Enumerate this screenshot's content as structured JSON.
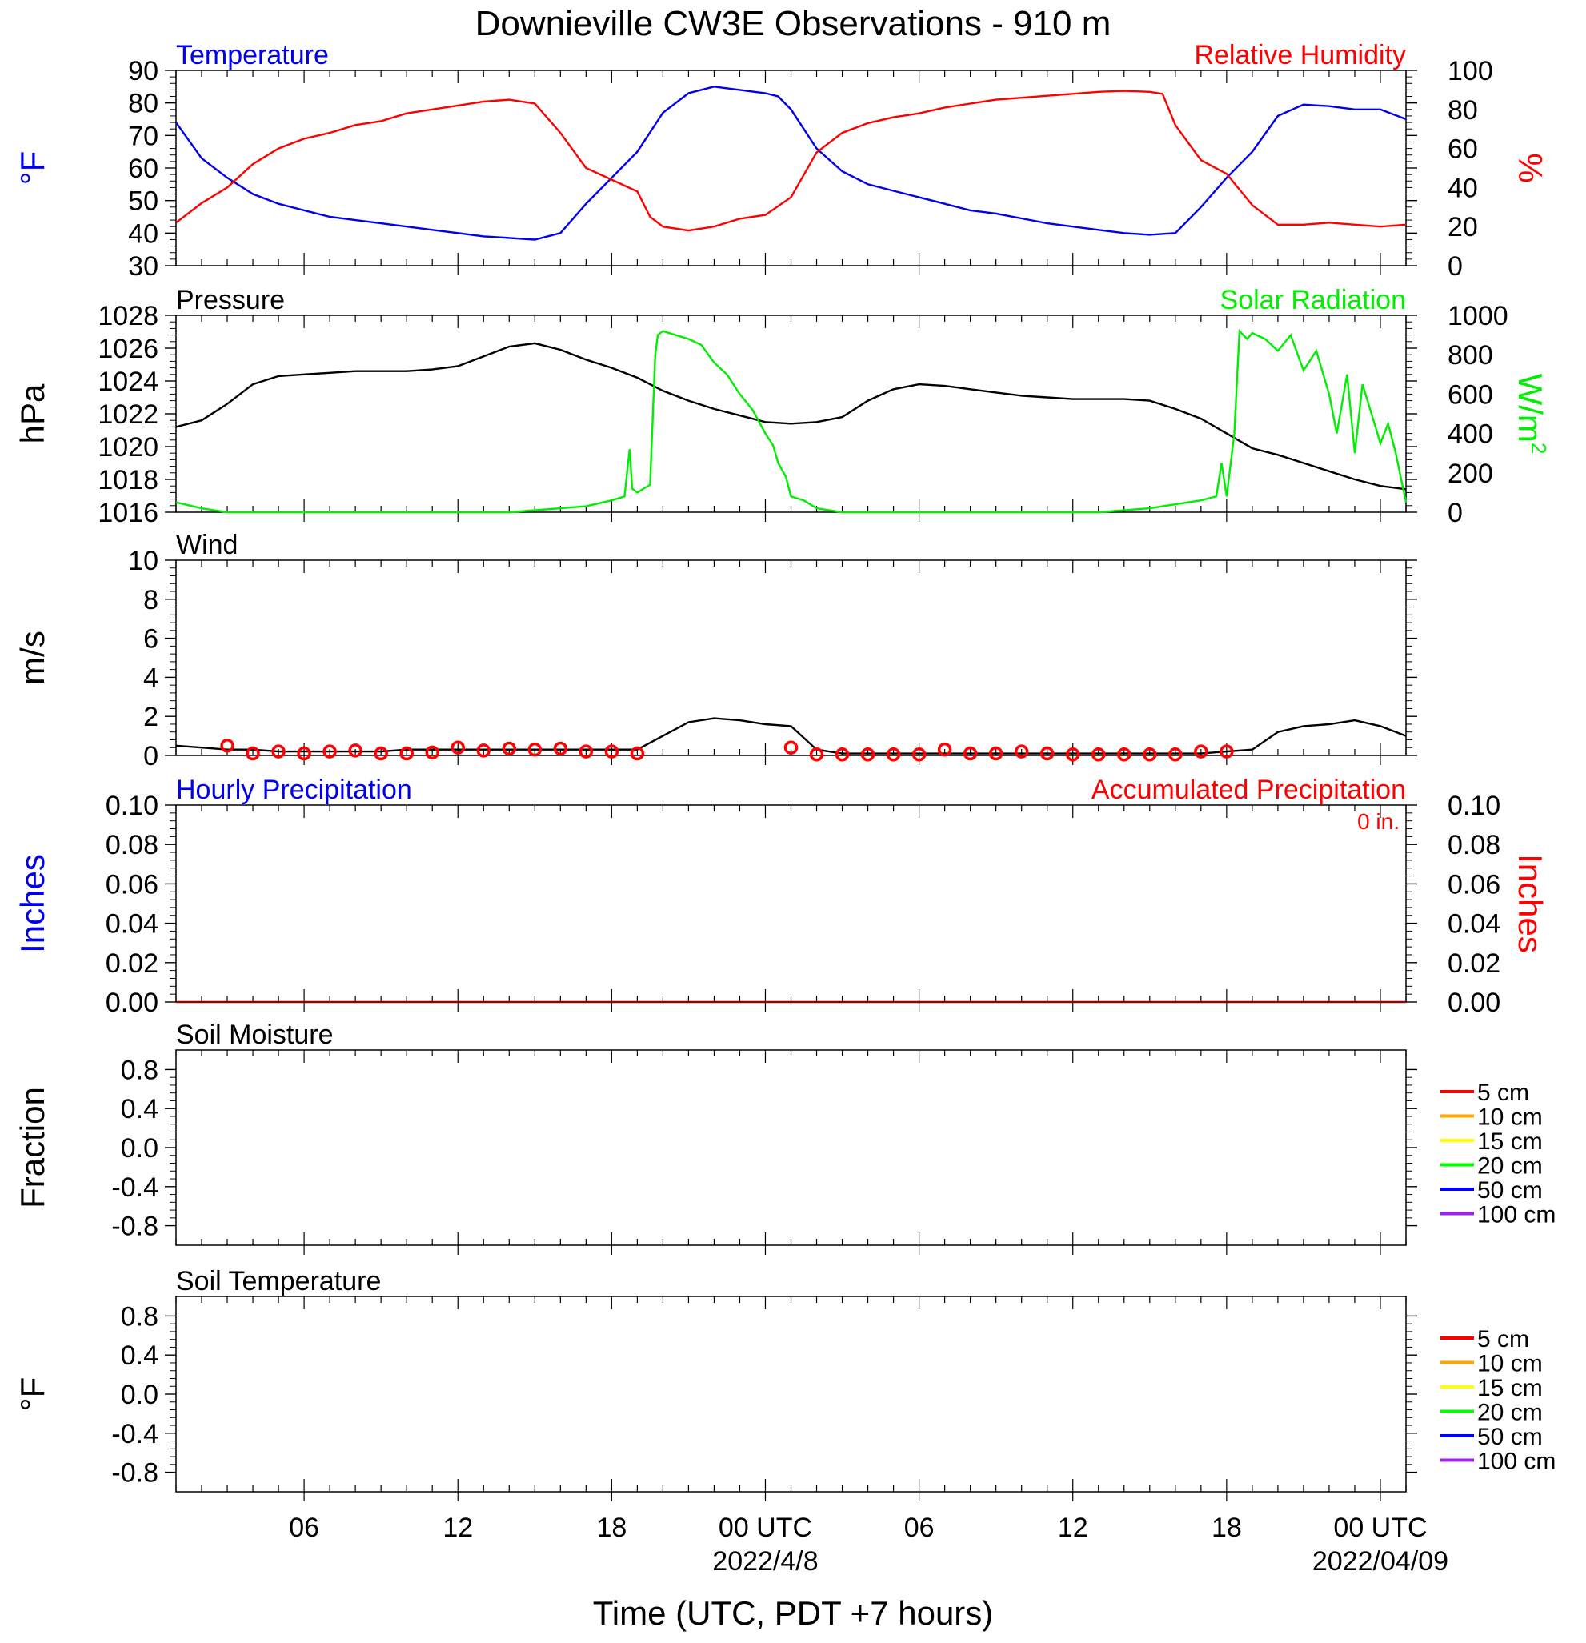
{
  "title": "Downieville CW3E Observations - 910 m",
  "xlabel": "Time (UTC, PDT +7 hours)",
  "x_axis": {
    "range_hours": [
      0,
      48
    ],
    "ticks": [
      {
        "hour": 5,
        "label": "06",
        "date": ""
      },
      {
        "hour": 11,
        "label": "12",
        "date": ""
      },
      {
        "hour": 17,
        "label": "18",
        "date": ""
      },
      {
        "hour": 23,
        "label": "00 UTC",
        "date": "2022/4/8"
      },
      {
        "hour": 29,
        "label": "06",
        "date": ""
      },
      {
        "hour": 35,
        "label": "12",
        "date": ""
      },
      {
        "hour": 41,
        "label": "18",
        "date": ""
      },
      {
        "hour": 47,
        "label": "00 UTC",
        "date": "2022/04/09"
      }
    ]
  },
  "colors": {
    "temperature": "#0000ee",
    "humidity": "#ff0000",
    "pressure": "#000000",
    "solar": "#00ee00",
    "wind": "#000000",
    "wind_marker": "#ff0000",
    "precip_left": "#0000ee",
    "precip_right": "#ff0000"
  },
  "chart_data": [
    {
      "type": "line",
      "id": "temperature-rh",
      "left_title": "Temperature",
      "right_title": "Relative Humidity",
      "ylabel_left": "°F",
      "ylabel_right": "%",
      "ylim_left": [
        30,
        90
      ],
      "yticks_left": [
        30,
        40,
        50,
        60,
        70,
        80,
        90
      ],
      "ylim_right": [
        0,
        100
      ],
      "yticks_right": [
        0,
        20,
        40,
        60,
        80,
        100
      ],
      "series": [
        {
          "name": "Temperature",
          "axis": "left",
          "x": [
            0,
            1,
            2,
            3,
            4,
            5,
            6,
            7,
            8,
            9,
            10,
            11,
            12,
            13,
            14,
            15,
            16,
            17,
            18,
            19,
            20,
            21,
            22,
            23,
            23.5,
            24,
            25,
            26,
            27,
            28,
            29,
            30,
            31,
            32,
            33,
            34,
            35,
            36,
            37,
            38,
            39,
            40,
            41,
            42,
            43,
            44,
            45,
            46,
            47,
            48
          ],
          "y": [
            74,
            63,
            57,
            52,
            49,
            47,
            45,
            44,
            43,
            42,
            41,
            40,
            39,
            38.5,
            38,
            40,
            49,
            57,
            65,
            77,
            83,
            85,
            84,
            83,
            82,
            78,
            66,
            59,
            55,
            53,
            51,
            49,
            47,
            46,
            44.5,
            43,
            42,
            41,
            40,
            39.5,
            40,
            48,
            57,
            65,
            76,
            79.5,
            79,
            78,
            78,
            75
          ]
        },
        {
          "name": "Relative Humidity",
          "axis": "right",
          "x": [
            0,
            1,
            2,
            3,
            4,
            5,
            6,
            7,
            8,
            9,
            10,
            11,
            12,
            13,
            14,
            15,
            16,
            17,
            18,
            18.5,
            19,
            20,
            21,
            22,
            23,
            24,
            25,
            26,
            27,
            28,
            29,
            30,
            31,
            32,
            33,
            34,
            35,
            36,
            37,
            38,
            38.5,
            39,
            40,
            41,
            42,
            43,
            44,
            45,
            46,
            47,
            48
          ],
          "y": [
            22,
            32,
            40,
            52,
            60,
            65,
            68,
            72,
            74,
            78,
            80,
            82,
            84,
            85,
            83,
            68,
            50,
            44,
            38,
            25,
            20,
            18,
            20,
            24,
            26,
            35,
            58,
            68,
            73,
            76,
            78,
            81,
            83,
            85,
            86,
            87,
            88,
            89,
            89.5,
            89,
            88,
            72,
            54,
            47,
            31,
            21,
            21,
            22,
            21,
            20,
            21
          ]
        }
      ]
    },
    {
      "type": "line",
      "id": "pressure-solar",
      "left_title": "Pressure",
      "right_title": "Solar Radiation",
      "ylabel_left": "hPa",
      "ylabel_right": "W/m",
      "ylabel_right_sup": "2",
      "ylim_left": [
        1016,
        1028
      ],
      "yticks_left": [
        1016,
        1018,
        1020,
        1022,
        1024,
        1026,
        1028
      ],
      "ylim_right": [
        0,
        1000
      ],
      "yticks_right": [
        0,
        200,
        400,
        600,
        800,
        1000
      ],
      "series": [
        {
          "name": "Pressure",
          "axis": "left",
          "x": [
            0,
            1,
            2,
            3,
            4,
            5,
            6,
            7,
            8,
            9,
            10,
            11,
            12,
            13,
            14,
            15,
            16,
            17,
            18,
            19,
            20,
            21,
            22,
            23,
            24,
            25,
            26,
            27,
            28,
            29,
            30,
            31,
            32,
            33,
            34,
            35,
            36,
            37,
            38,
            39,
            40,
            41,
            42,
            43,
            44,
            45,
            46,
            47,
            48
          ],
          "y": [
            1021.2,
            1021.6,
            1022.6,
            1023.8,
            1024.3,
            1024.4,
            1024.5,
            1024.6,
            1024.6,
            1024.6,
            1024.7,
            1024.9,
            1025.5,
            1026.1,
            1026.3,
            1025.9,
            1025.3,
            1024.8,
            1024.2,
            1023.4,
            1022.8,
            1022.3,
            1021.9,
            1021.5,
            1021.4,
            1021.5,
            1021.8,
            1022.8,
            1023.5,
            1023.8,
            1023.7,
            1023.5,
            1023.3,
            1023.1,
            1023.0,
            1022.9,
            1022.9,
            1022.9,
            1022.8,
            1022.3,
            1021.7,
            1020.8,
            1019.9,
            1019.5,
            1019.0,
            1018.5,
            1018.0,
            1017.6,
            1017.4
          ]
        },
        {
          "name": "Solar Radiation",
          "axis": "right",
          "x": [
            0,
            1,
            2,
            5,
            10,
            13,
            16,
            17,
            17.5,
            17.7,
            17.8,
            18,
            18.5,
            18.7,
            18.8,
            19,
            19.5,
            20,
            20.5,
            21,
            21.5,
            22,
            22.5,
            23,
            23.3,
            23.5,
            23.8,
            24,
            24.5,
            25,
            26,
            30,
            36,
            38,
            40,
            40.6,
            40.8,
            41,
            41.3,
            41.5,
            41.8,
            42,
            42.5,
            43,
            43.5,
            44,
            44.5,
            45,
            45.3,
            45.7,
            46,
            46.3,
            46.7,
            47,
            47.3,
            47.6,
            48
          ],
          "y": [
            50,
            20,
            0,
            0,
            0,
            0,
            30,
            60,
            80,
            320,
            120,
            100,
            140,
            800,
            900,
            920,
            900,
            880,
            850,
            760,
            700,
            600,
            520,
            400,
            340,
            250,
            180,
            80,
            60,
            20,
            0,
            0,
            0,
            20,
            60,
            80,
            250,
            80,
            400,
            920,
            880,
            910,
            880,
            820,
            900,
            720,
            820,
            600,
            400,
            700,
            300,
            650,
            480,
            350,
            450,
            300,
            50
          ]
        }
      ]
    },
    {
      "type": "line",
      "id": "wind",
      "left_title": "Wind",
      "ylabel_left": "m/s",
      "ylim_left": [
        0,
        10
      ],
      "yticks_left": [
        0,
        2,
        4,
        6,
        8,
        10
      ],
      "series": [
        {
          "name": "Wind speed",
          "axis": "left",
          "x": [
            0,
            1,
            2,
            3,
            4,
            5,
            6,
            7,
            8,
            9,
            10,
            11,
            12,
            13,
            14,
            15,
            16,
            17,
            18,
            19,
            20,
            21,
            22,
            23,
            24,
            25,
            26,
            27,
            28,
            29,
            30,
            31,
            32,
            33,
            34,
            35,
            36,
            37,
            38,
            39,
            40,
            41,
            42,
            43,
            44,
            45,
            46,
            47,
            48
          ],
          "y": [
            0.5,
            0.4,
            0.3,
            0.3,
            0.2,
            0.2,
            0.2,
            0.2,
            0.2,
            0.3,
            0.3,
            0.3,
            0.3,
            0.3,
            0.3,
            0.3,
            0.3,
            0.3,
            0.3,
            1.0,
            1.7,
            1.9,
            1.8,
            1.6,
            1.5,
            0.3,
            0.1,
            0.1,
            0.1,
            0.1,
            0.1,
            0.1,
            0.1,
            0.1,
            0.1,
            0.1,
            0.1,
            0.1,
            0.1,
            0.1,
            0.1,
            0.2,
            0.3,
            1.2,
            1.5,
            1.6,
            1.8,
            1.5,
            1.0
          ]
        },
        {
          "name": "Hourly wind markers",
          "axis": "left",
          "marker": "circle",
          "x": [
            2,
            3,
            4,
            5,
            6,
            7,
            8,
            9,
            10,
            11,
            12,
            13,
            14,
            15,
            16,
            17,
            18,
            24,
            25,
            26,
            27,
            28,
            29,
            30,
            31,
            32,
            33,
            34,
            35,
            36,
            37,
            38,
            39,
            40,
            41
          ],
          "y": [
            0.5,
            0.1,
            0.2,
            0.1,
            0.2,
            0.25,
            0.1,
            0.1,
            0.15,
            0.4,
            0.25,
            0.35,
            0.3,
            0.35,
            0.2,
            0.2,
            0.1,
            0.4,
            0.05,
            0.05,
            0.05,
            0.05,
            0.05,
            0.3,
            0.1,
            0.1,
            0.2,
            0.1,
            0.05,
            0.05,
            0.05,
            0.05,
            0.05,
            0.2,
            0.2
          ]
        }
      ]
    },
    {
      "type": "line",
      "id": "precipitation",
      "left_title": "Hourly Precipitation",
      "right_title": "Accumulated Precipitation",
      "annotation": "0 in.",
      "ylabel_left": "Inches",
      "ylabel_right": "Inches",
      "ylim_left": [
        0,
        0.1
      ],
      "yticks_left": [
        "0.00",
        "0.02",
        "0.04",
        "0.06",
        "0.08",
        "0.10"
      ],
      "ylim_right": [
        0,
        0.1
      ],
      "yticks_right": [
        "0.00",
        "0.02",
        "0.04",
        "0.06",
        "0.08",
        "0.10"
      ],
      "series": [
        {
          "name": "Accumulated Precipitation",
          "axis": "right",
          "x": [
            0,
            48
          ],
          "y": [
            0,
            0
          ]
        }
      ]
    },
    {
      "type": "line",
      "id": "soil-moisture",
      "left_title": "Soil Moisture",
      "ylabel_left": "Fraction",
      "ylim_left": [
        -1,
        1
      ],
      "yticks_left": [
        "-0.8",
        "-0.4",
        "0.0",
        "0.4",
        "0.8"
      ],
      "legend": [
        {
          "label": "5 cm",
          "color": "#ff0000"
        },
        {
          "label": "10 cm",
          "color": "#ffa500"
        },
        {
          "label": "15 cm",
          "color": "#ffff00"
        },
        {
          "label": "20 cm",
          "color": "#00ff00"
        },
        {
          "label": "50 cm",
          "color": "#0000ff"
        },
        {
          "label": "100 cm",
          "color": "#a020f0"
        }
      ]
    },
    {
      "type": "line",
      "id": "soil-temperature",
      "left_title": "Soil Temperature",
      "ylabel_left": "°F",
      "ylim_left": [
        -1,
        1
      ],
      "yticks_left": [
        "-0.8",
        "-0.4",
        "0.0",
        "0.4",
        "0.8"
      ],
      "legend": [
        {
          "label": "5 cm",
          "color": "#ff0000"
        },
        {
          "label": "10 cm",
          "color": "#ffa500"
        },
        {
          "label": "15 cm",
          "color": "#ffff00"
        },
        {
          "label": "20 cm",
          "color": "#00ff00"
        },
        {
          "label": "50 cm",
          "color": "#0000ff"
        },
        {
          "label": "100 cm",
          "color": "#a020f0"
        }
      ]
    }
  ]
}
